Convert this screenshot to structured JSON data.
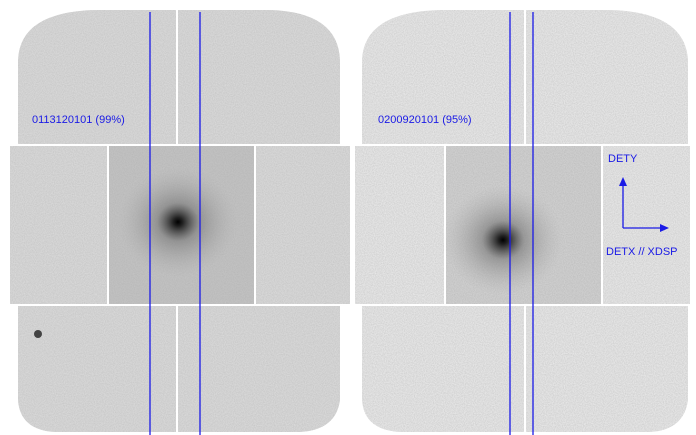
{
  "panels": [
    {
      "label": "0113120101 (99%)"
    },
    {
      "label": "0200920101 (95%)"
    }
  ],
  "axes": {
    "up": "DETY",
    "right": "DETX // XDSP"
  }
}
